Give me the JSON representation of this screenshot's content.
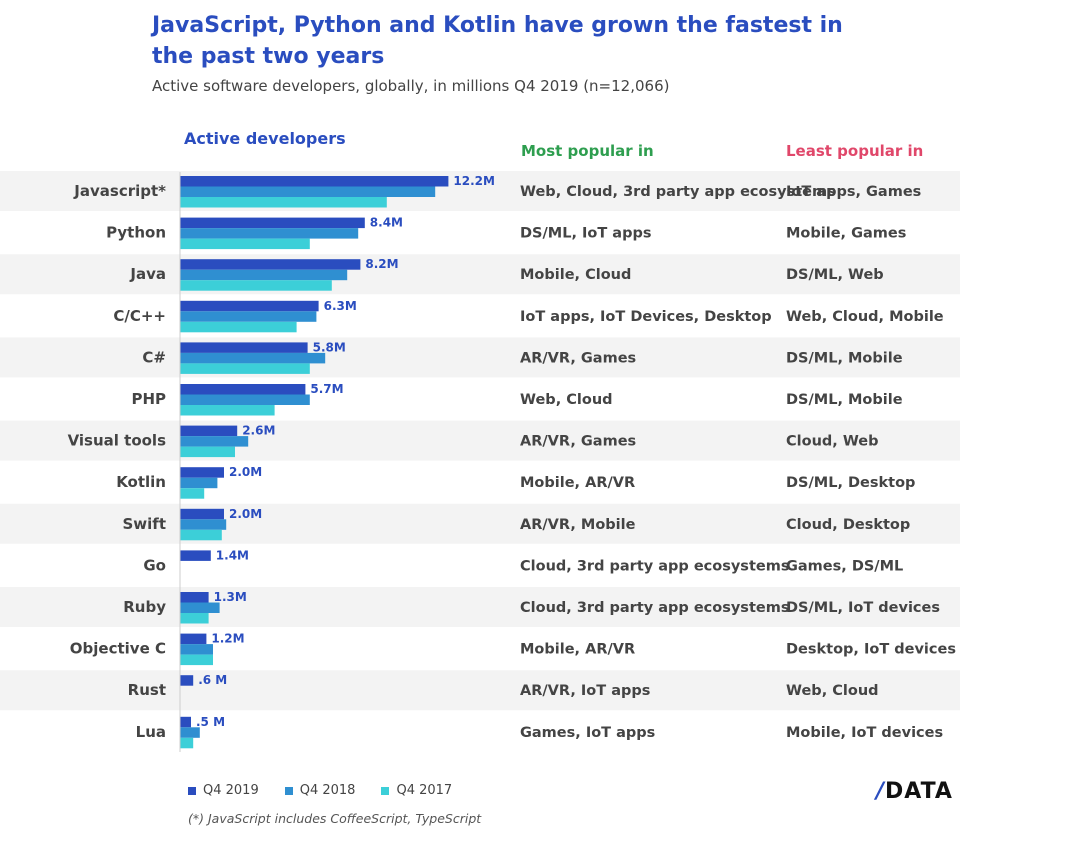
{
  "title": "JavaScript, Python and Kotlin have grown the fastest in the past two years",
  "subtitle": "Active software developers, globally, in millions Q4 2019 (n=12,066)",
  "headers": {
    "active": "Active developers",
    "most": "Most popular in",
    "least": "Least popular in"
  },
  "legend": [
    {
      "label": "Q4 2019",
      "color": "#2a4dbf"
    },
    {
      "label": "Q4 2018",
      "color": "#2f8fd1"
    },
    {
      "label": "Q4 2017",
      "color": "#3ccfd8"
    }
  ],
  "footnote": "(*) JavaScript includes CoffeeScript, TypeScript",
  "logo": {
    "slash": "/",
    "text": "DATA"
  },
  "chart_data": {
    "type": "bar",
    "orientation": "horizontal",
    "title": "JavaScript, Python and Kotlin have grown the fastest in the past two years",
    "unit": "millions",
    "categories": [
      "Javascript*",
      "Python",
      "Java",
      "C/C++",
      "C#",
      "PHP",
      "Visual tools",
      "Kotlin",
      "Swift",
      "Go",
      "Ruby",
      "Objective C",
      "Rust",
      "Lua"
    ],
    "value_labels": [
      "12.2M",
      "8.4M",
      "8.2M",
      "6.3M",
      "5.8M",
      "5.7M",
      "2.6M",
      "2.0M",
      "2.0M",
      "1.4M",
      "1.3M",
      "1.2M",
      ".6 M",
      ".5 M"
    ],
    "series": [
      {
        "name": "Q4 2019",
        "values": [
          12.2,
          8.4,
          8.2,
          6.3,
          5.8,
          5.7,
          2.6,
          2.0,
          2.0,
          1.4,
          1.3,
          1.2,
          0.6,
          0.5
        ]
      },
      {
        "name": "Q4 2018",
        "values": [
          11.6,
          8.1,
          7.6,
          6.2,
          6.6,
          5.9,
          3.1,
          1.7,
          2.1,
          0,
          1.8,
          1.5,
          0,
          0.9
        ]
      },
      {
        "name": "Q4 2017",
        "values": [
          9.4,
          5.9,
          6.9,
          5.3,
          5.9,
          4.3,
          2.5,
          1.1,
          1.9,
          0,
          1.3,
          1.5,
          0,
          0.6
        ]
      }
    ],
    "xlim": [
      0,
      13
    ],
    "most_popular": [
      "Web, Cloud, 3rd party app ecosystems",
      "DS/ML, IoT apps",
      "Mobile, Cloud",
      "IoT apps, IoT Devices, Desktop",
      "AR/VR, Games",
      "Web, Cloud",
      "AR/VR, Games",
      "Mobile, AR/VR",
      "AR/VR, Mobile",
      "Cloud, 3rd party app ecosystems",
      "Cloud, 3rd party app ecosystems",
      "Mobile, AR/VR",
      "AR/VR, IoT apps",
      "Games, IoT apps"
    ],
    "least_popular": [
      "IoT apps, Games",
      "Mobile, Games",
      "DS/ML, Web",
      "Web, Cloud, Mobile",
      "DS/ML, Mobile",
      "DS/ML, Mobile",
      "Cloud, Web",
      "DS/ML, Desktop",
      "Cloud, Desktop",
      "Games, DS/ML",
      "DS/ML, IoT devices",
      "Desktop, IoT devices",
      "Web, Cloud",
      "Mobile, IoT devices"
    ]
  }
}
